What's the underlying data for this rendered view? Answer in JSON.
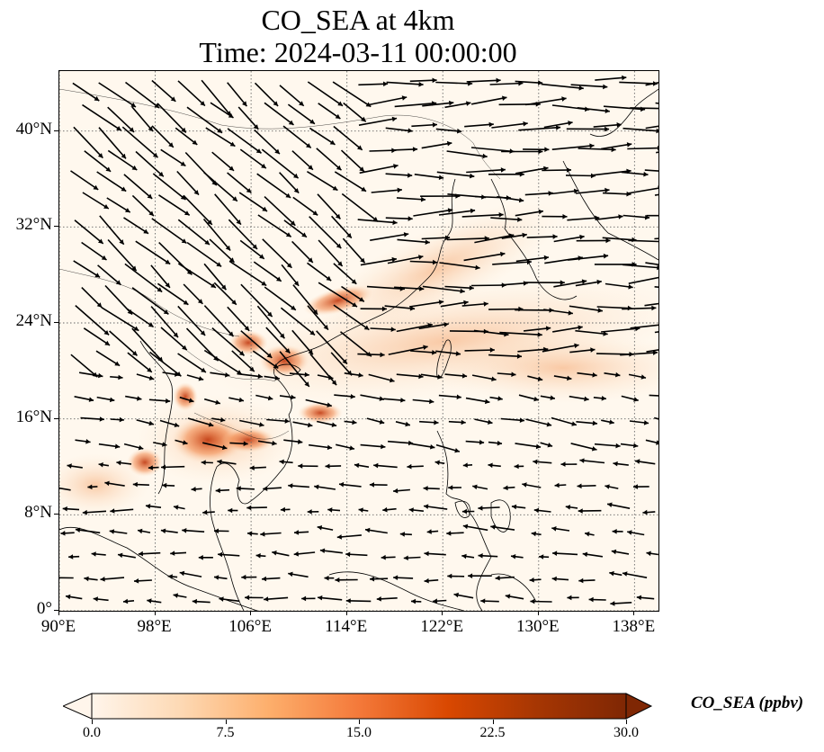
{
  "title": {
    "line1": "CO_SEA at 4km",
    "line2": "Time: 2024-03-11 00:00:00"
  },
  "map": {
    "type": "map",
    "region": "Southeast Asia",
    "lon_range": [
      90,
      140
    ],
    "lat_range": [
      0,
      45
    ],
    "lon_ticks": [
      "90°E",
      "98°E",
      "106°E",
      "114°E",
      "122°E",
      "130°E",
      "138°E"
    ],
    "lat_ticks": [
      "0°",
      "8°N",
      "16°N",
      "24°N",
      "32°N",
      "40°N"
    ],
    "gridlines": true,
    "field": "CO_SEA",
    "overlay": "wind vectors"
  },
  "colorbar": {
    "label": "CO_SEA (ppbv)",
    "ticks": [
      "0.0",
      "7.5",
      "15.0",
      "22.5",
      "30.0"
    ],
    "min": 0,
    "max": 30,
    "colormap": [
      "#fff5eb",
      "#fdd9b4",
      "#fdae6b",
      "#f4793a",
      "#d94801",
      "#a63603",
      "#7f2704"
    ],
    "extend": "both"
  }
}
